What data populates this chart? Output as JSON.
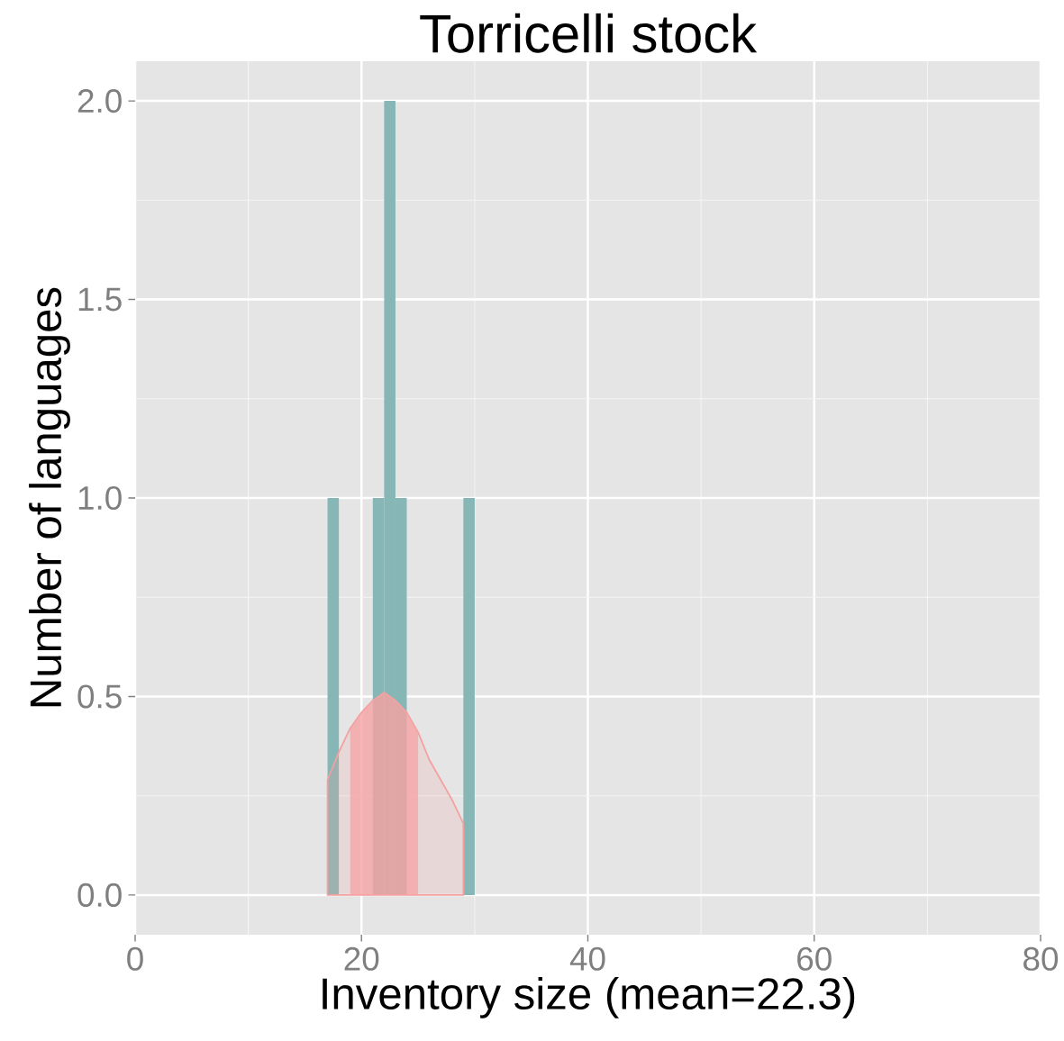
{
  "chart_data": {
    "type": "histogram",
    "title": "Torricelli stock",
    "xlabel": "Inventory size (mean=22.3)",
    "ylabel": "Number of languages",
    "xlim": [
      0,
      80
    ],
    "ylim": [
      -0.1,
      2.1
    ],
    "xticks": [
      0,
      20,
      40,
      60,
      80
    ],
    "yticks": [
      {
        "value": 0,
        "label": "0.0"
      },
      {
        "value": 0.5,
        "label": "0.5"
      },
      {
        "value": 1,
        "label": "1.0"
      },
      {
        "value": 1.5,
        "label": "1.5"
      },
      {
        "value": 2,
        "label": "2.0"
      }
    ],
    "grid": true,
    "series": [
      {
        "type": "histogram",
        "color": "#86b6b5",
        "bins": [
          17,
          18,
          19,
          20,
          21,
          22,
          23,
          24,
          25,
          26,
          27,
          28,
          29,
          30
        ],
        "values": [
          1,
          0,
          0,
          0,
          1,
          2,
          1,
          0,
          0,
          0,
          0,
          0,
          1
        ]
      },
      {
        "type": "area",
        "color": "#f4a0a0",
        "x": [
          17,
          18,
          19,
          20,
          21,
          22,
          23,
          24,
          25,
          26,
          27,
          28,
          29
        ],
        "values": [
          0.29,
          0.36,
          0.42,
          0.46,
          0.49,
          0.51,
          0.49,
          0.46,
          0.41,
          0.34,
          0.29,
          0.24,
          0.18
        ]
      },
      {
        "type": "area",
        "color": "#f7a3a3",
        "x": [
          19,
          20,
          21,
          22,
          23,
          24,
          25
        ],
        "values": [
          0.42,
          0.46,
          0.49,
          0.51,
          0.49,
          0.46,
          0.41
        ]
      }
    ]
  }
}
